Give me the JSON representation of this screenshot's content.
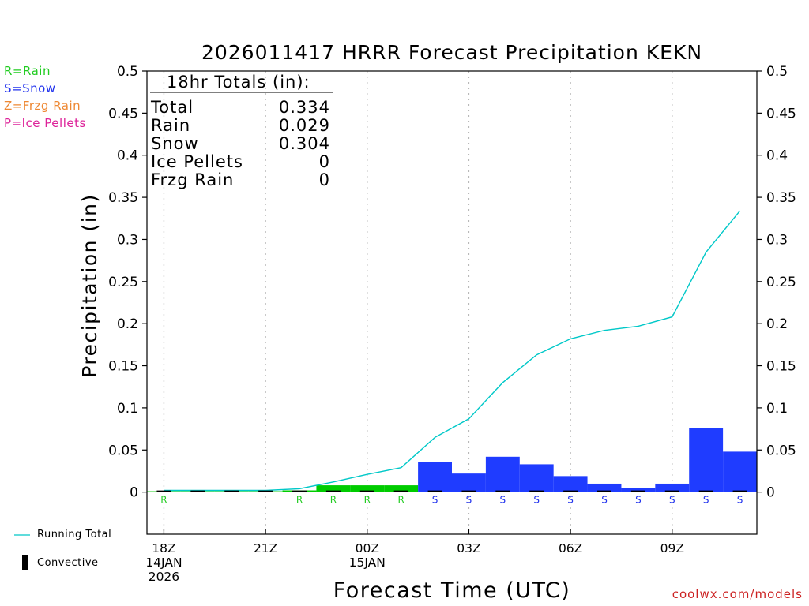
{
  "page": {
    "title": "2026011417 HRRR Forecast Precipitation KEKN",
    "footer": "coolwx.com/models"
  },
  "key": [
    {
      "text": "R=Rain",
      "color": "#22cc22"
    },
    {
      "text": "S=Snow",
      "color": "#2233ee"
    },
    {
      "text": "Z=Frzg Rain",
      "color": "#ee8833"
    },
    {
      "text": "P=Ice Pellets",
      "color": "#dd2299"
    }
  ],
  "bottom_legend": {
    "running_total": "Running Total",
    "convective": "Convective"
  },
  "totals_box": {
    "header": "18hr Totals (in):",
    "rows": [
      {
        "label": "Total",
        "value": "0.334"
      },
      {
        "label": "Rain",
        "value": "0.029"
      },
      {
        "label": "Snow",
        "value": "0.304"
      },
      {
        "label": "Ice Pellets",
        "value": "0"
      },
      {
        "label": "Frzg Rain",
        "value": "0"
      }
    ]
  },
  "chart_data": {
    "type": "bar",
    "title": "2026011417 HRRR Forecast Precipitation KEKN",
    "xlabel": "Forecast Time (UTC)",
    "ylabel": "Precipitation (in)",
    "ylim": [
      -0.05,
      0.5
    ],
    "yticks": [
      0,
      0.05,
      0.1,
      0.15,
      0.2,
      0.25,
      0.3,
      0.35,
      0.4,
      0.45,
      0.5
    ],
    "ytick_labels": [
      "0",
      "0.05",
      "0.1",
      "0.15",
      "0.2",
      "0.25",
      "0.3",
      "0.35",
      "0.4",
      "0.45",
      "0.5"
    ],
    "x_hours_range": [
      -0.5,
      17.5
    ],
    "xticks": [
      {
        "hour": 0,
        "lines": [
          "18Z",
          "14JAN",
          "2026"
        ]
      },
      {
        "hour": 3,
        "lines": [
          "21Z"
        ]
      },
      {
        "hour": 6,
        "lines": [
          "00Z",
          "15JAN"
        ]
      },
      {
        "hour": 9,
        "lines": [
          "03Z"
        ]
      },
      {
        "hour": 12,
        "lines": [
          "06Z"
        ]
      },
      {
        "hour": 15,
        "lines": [
          "09Z"
        ]
      }
    ],
    "grid": "vertical dotted at 3-hourly ticks",
    "colors": {
      "rain": "#00cc00",
      "snow": "#1f3cff",
      "running_total": "#00c8c8",
      "convective": "#000000"
    },
    "series": [
      {
        "name": "Rain",
        "hours": [
          0,
          1,
          2,
          3,
          4,
          5,
          6,
          7
        ],
        "values": [
          0.001,
          0.001,
          0.001,
          0.001,
          0.002,
          0.008,
          0.008,
          0.008
        ]
      },
      {
        "name": "Snow",
        "hours": [
          8,
          9,
          10,
          11,
          12,
          13,
          14,
          15,
          16,
          17
        ],
        "values": [
          0.036,
          0.022,
          0.042,
          0.033,
          0.019,
          0.01,
          0.005,
          0.01,
          0.076,
          0.048
        ]
      },
      {
        "name": "Running Total",
        "hours": [
          0,
          1,
          2,
          3,
          4,
          5,
          6,
          7,
          8,
          9,
          10,
          11,
          12,
          13,
          14,
          15,
          16,
          17
        ],
        "values": [
          0.002,
          0.002,
          0.002,
          0.002,
          0.004,
          0.012,
          0.021,
          0.029,
          0.065,
          0.087,
          0.13,
          0.163,
          0.182,
          0.192,
          0.197,
          0.208,
          0.285,
          0.334
        ]
      },
      {
        "name": "Convective",
        "hours": [
          0,
          1,
          2,
          3,
          4,
          5,
          6,
          7,
          8,
          9,
          10,
          11,
          12,
          13,
          14,
          15,
          16,
          17
        ],
        "values": [
          0.001,
          0.001,
          0.001,
          0.001,
          0.001,
          0.001,
          0.001,
          0.001,
          0.001,
          0.001,
          0.001,
          0.001,
          0.001,
          0.001,
          0.001,
          0.001,
          0.001,
          0.001
        ]
      }
    ],
    "ptype_labels": [
      {
        "hour": 0,
        "text": "R",
        "color": "#22cc22"
      },
      {
        "hour": 4,
        "text": "R",
        "color": "#22cc22"
      },
      {
        "hour": 5,
        "text": "R",
        "color": "#22cc22"
      },
      {
        "hour": 6,
        "text": "R",
        "color": "#22cc22"
      },
      {
        "hour": 7,
        "text": "R",
        "color": "#22cc22"
      },
      {
        "hour": 8,
        "text": "S",
        "color": "#2233ee"
      },
      {
        "hour": 9,
        "text": "S",
        "color": "#2233ee"
      },
      {
        "hour": 10,
        "text": "S",
        "color": "#2233ee"
      },
      {
        "hour": 11,
        "text": "S",
        "color": "#2233ee"
      },
      {
        "hour": 12,
        "text": "S",
        "color": "#2233ee"
      },
      {
        "hour": 13,
        "text": "S",
        "color": "#2233ee"
      },
      {
        "hour": 14,
        "text": "S",
        "color": "#2233ee"
      },
      {
        "hour": 15,
        "text": "S",
        "color": "#2233ee"
      },
      {
        "hour": 16,
        "text": "S",
        "color": "#2233ee"
      },
      {
        "hour": 17,
        "text": "S",
        "color": "#2233ee"
      }
    ]
  }
}
